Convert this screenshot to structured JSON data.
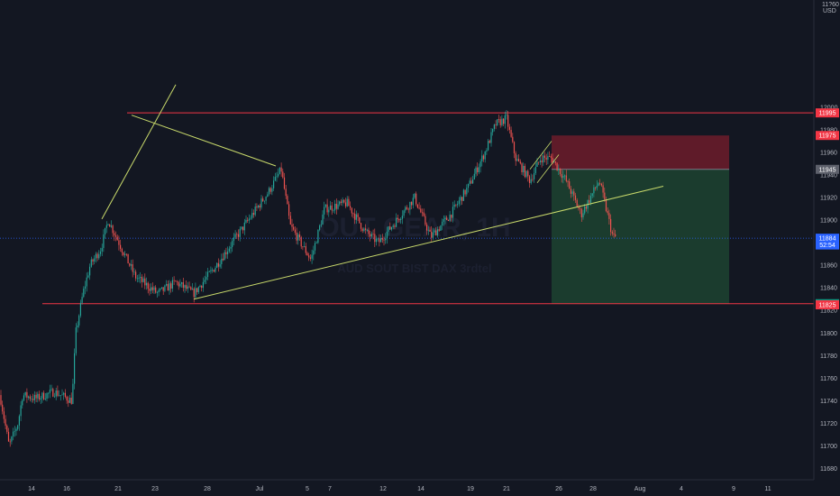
{
  "chart_data": {
    "type": "candlestick",
    "title": "",
    "currency": "USD",
    "y_axis_top_label": "11?60",
    "y_ticks": [
      12000,
      11980,
      11960,
      11940,
      11920,
      11900,
      11880,
      11860,
      11840,
      11820,
      11800,
      11780,
      11760,
      11740,
      11720,
      11700,
      11680
    ],
    "x_ticks": [
      "14",
      "16",
      "21",
      "23",
      "28",
      "Jul",
      "5",
      "7",
      "12",
      "14",
      "19",
      "21",
      "26",
      "28",
      "Aug",
      "4",
      "9",
      "11"
    ],
    "ylim": [
      11670,
      12095
    ],
    "grid": false,
    "price_tags": [
      {
        "label": "11995",
        "value": 11995,
        "color": "#f23645",
        "text_color": "#ffffff"
      },
      {
        "label": "11975",
        "value": 11975,
        "color": "#f23645",
        "text_color": "#ffffff"
      },
      {
        "label": "11945",
        "value": 11945,
        "color": "#5d606b",
        "text_color": "#ffffff"
      },
      {
        "label": "11884",
        "value": 11884,
        "color": "#2962ff",
        "text_color": "#ffffff"
      },
      {
        "label": "52:54",
        "value": 11878,
        "color": "#2962ff",
        "text_color": "#ffffff"
      },
      {
        "label": "11826",
        "value": 11826,
        "color": "#089981",
        "text_color": "#ffffff"
      },
      {
        "label": "11825",
        "value": 11825,
        "color": "#f23645",
        "text_color": "#ffffff"
      }
    ],
    "horizontal_levels": [
      {
        "value": 11995,
        "color": "#f23645",
        "from_x": "21"
      },
      {
        "value": 11826,
        "color": "#f23645",
        "from_x": "14"
      }
    ],
    "trendlines": [
      {
        "from": [
          "21",
          11901
        ],
        "to": [
          "28",
          12020
        ],
        "color": "#c8d96b"
      },
      {
        "from": [
          "5",
          11948
        ],
        "to": [
          "21",
          11993
        ],
        "color": "#c8d96b"
      },
      {
        "from": [
          "28",
          11830
        ],
        "to": [
          "4",
          11930
        ],
        "color": "#c8d96b"
      }
    ],
    "position_box": {
      "entry": 11945,
      "stop": 11975,
      "target": 11826,
      "loss_color": "#7a1e2c",
      "profit_color": "#1f4a33"
    },
    "watermark": {
      "symbol": "OUT GEAR, 1H",
      "description": "AUD SOUT BIST DAX 3rdtel"
    },
    "colors": {
      "background": "#131722",
      "up": "#26a69a",
      "down": "#ef5350"
    }
  }
}
